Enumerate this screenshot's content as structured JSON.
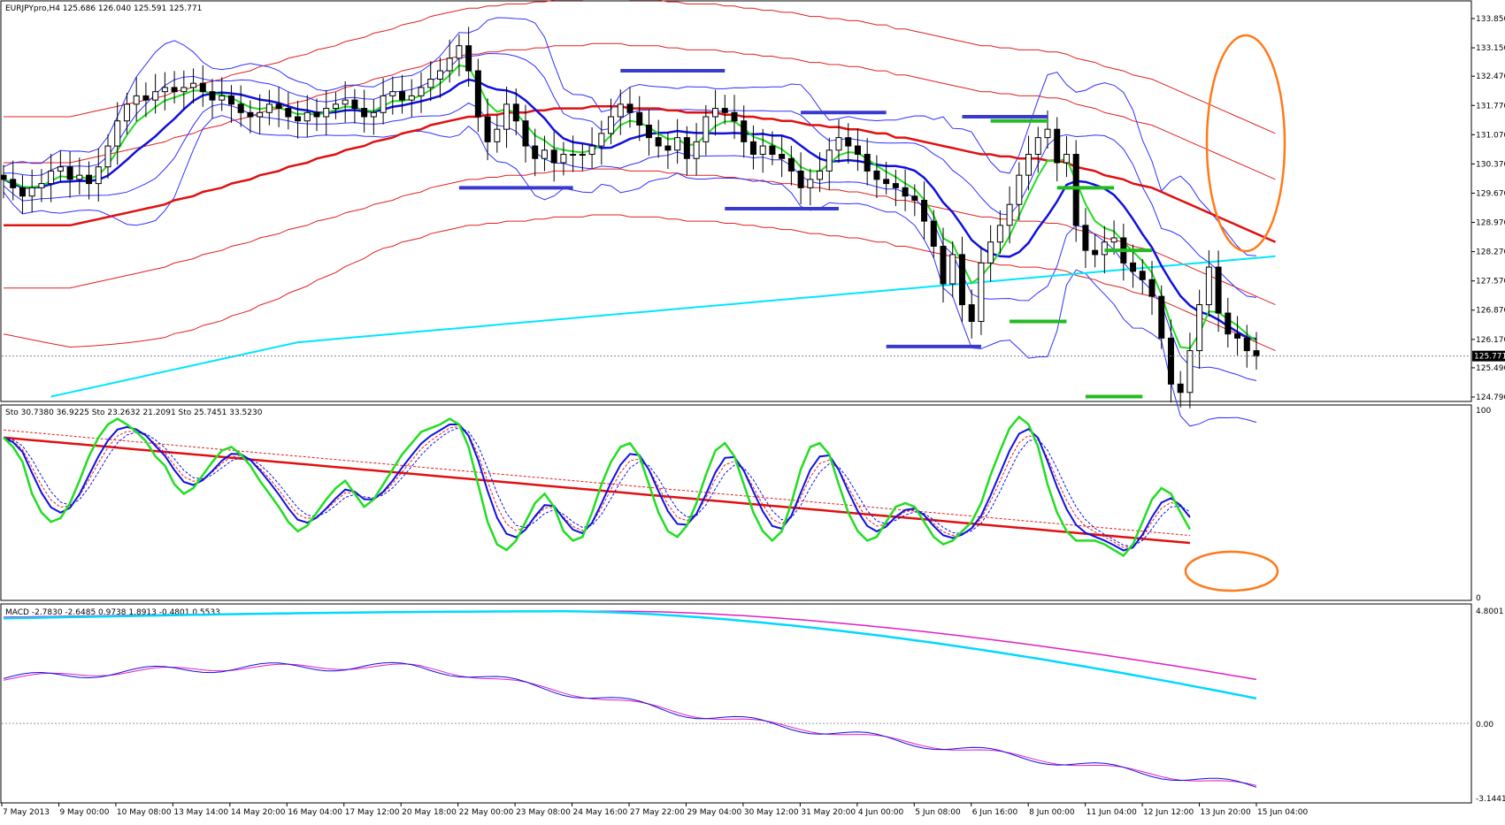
{
  "chart_data": [
    {
      "type": "candlestick",
      "header": "EURJPYpro,H4  125.686 126.040 125.591 125.771",
      "y_ticks": [
        "133.850",
        "133.150",
        "132.470",
        "131.770",
        "131.070",
        "130.370",
        "129.670",
        "128.970",
        "128.270",
        "127.570",
        "126.870",
        "126.170",
        "125.490",
        "124.790"
      ],
      "ylim": [
        124.79,
        133.85
      ],
      "current_price": "125.771",
      "x_ticks": [
        "7 May 2013",
        "9 May 00:00",
        "10 May 08:00",
        "13 May 14:00",
        "14 May 20:00",
        "16 May 04:00",
        "17 May 12:00",
        "20 May 18:00",
        "22 May 00:00",
        "23 May 08:00",
        "24 May 16:00",
        "27 May 22:00",
        "29 May 04:00",
        "30 May 12:00",
        "31 May 20:00",
        "4 Jun 00:00",
        "5 Jun 08:00",
        "6 Jun 16:00",
        "8 Jun 00:00",
        "11 Jun 04:00",
        "12 Jun 12:00",
        "13 Jun 20:00",
        "15 Jun 04:00"
      ],
      "closes": [
        130.0,
        129.8,
        129.6,
        129.8,
        129.9,
        130.2,
        130.3,
        130.0,
        130.1,
        129.9,
        130.3,
        130.8,
        131.4,
        131.8,
        132.0,
        131.9,
        132.1,
        132.2,
        132.1,
        132.2,
        132.3,
        132.1,
        131.9,
        132.0,
        131.8,
        131.6,
        131.5,
        131.6,
        131.8,
        131.7,
        131.5,
        131.4,
        131.6,
        131.5,
        131.7,
        131.8,
        131.9,
        131.7,
        131.5,
        131.6,
        132.0,
        132.1,
        131.9,
        132.0,
        132.2,
        132.4,
        132.6,
        132.9,
        133.2,
        132.6,
        131.5,
        130.9,
        131.2,
        131.8,
        131.4,
        130.8,
        130.5,
        130.7,
        130.4,
        130.6,
        130.6,
        130.6,
        130.8,
        131.1,
        131.5,
        131.8,
        131.6,
        131.3,
        131.0,
        130.8,
        130.7,
        131.0,
        130.5,
        130.9,
        131.5,
        131.7,
        131.6,
        131.4,
        130.9,
        130.6,
        130.8,
        130.6,
        130.5,
        130.2,
        129.8,
        130.0,
        130.2,
        130.7,
        131.0,
        130.8,
        130.6,
        130.2,
        130.0,
        129.9,
        129.8,
        129.6,
        129.5,
        129.0,
        128.4,
        127.5,
        128.2,
        127.0,
        126.6,
        128.0,
        128.5,
        128.9,
        129.4,
        130.1,
        130.6,
        131.0,
        131.2,
        130.4,
        130.6,
        128.9,
        128.3,
        128.2,
        128.5,
        128.6,
        128.0,
        127.8,
        127.6,
        127.2,
        126.2,
        125.1,
        124.9,
        125.9,
        127.0,
        127.9,
        126.8,
        126.3,
        126.2,
        125.9,
        125.771
      ],
      "ma_red_thick": [
        128.9,
        128.9,
        128.9,
        128.9,
        128.9,
        128.9,
        128.9,
        128.9,
        128.95,
        129.0,
        129.05,
        129.1,
        129.15,
        129.2,
        129.25,
        129.3,
        129.35,
        129.4,
        129.5,
        129.55,
        129.6,
        129.7,
        129.75,
        129.8,
        129.9,
        129.95,
        130.0,
        130.1,
        130.15,
        130.2,
        130.3,
        130.35,
        130.4,
        130.5,
        130.55,
        130.6,
        130.7,
        130.75,
        130.8,
        130.9,
        130.95,
        131.0,
        131.1,
        131.15,
        131.2,
        131.3,
        131.35,
        131.4,
        131.45,
        131.5,
        131.5,
        131.55,
        131.55,
        131.6,
        131.6,
        131.6,
        131.65,
        131.65,
        131.7,
        131.7,
        131.7,
        131.7,
        131.75,
        131.75,
        131.75,
        131.75,
        131.7,
        131.7,
        131.7,
        131.7,
        131.65,
        131.65,
        131.6,
        131.6,
        131.6,
        131.6,
        131.55,
        131.55,
        131.5,
        131.5,
        131.45,
        131.45,
        131.4,
        131.4,
        131.35,
        131.3,
        131.3,
        131.25,
        131.25,
        131.2,
        131.2,
        131.15,
        131.1,
        131.1,
        131.0,
        131.0,
        130.95,
        130.9,
        130.85,
        130.8,
        130.75,
        130.7,
        130.65,
        130.6,
        130.6,
        130.55,
        130.55,
        130.5,
        130.5,
        130.5,
        130.45,
        130.45,
        130.4,
        130.3,
        130.25,
        130.2,
        130.1,
        130.05,
        130.0,
        129.9,
        129.85,
        129.8,
        129.7,
        129.6,
        129.5,
        129.4,
        129.3,
        129.2,
        129.1,
        129.0,
        128.9,
        128.8,
        128.7,
        128.6,
        128.5
      ],
      "cyan_ma": [
        null,
        null,
        null,
        null,
        null,
        124.8,
        124.85,
        124.9,
        124.95,
        125.0,
        125.05,
        125.1,
        125.15,
        125.2,
        125.25,
        125.3,
        125.35,
        125.4,
        125.45,
        125.5,
        125.55,
        125.6,
        125.65,
        125.7,
        125.75,
        125.8,
        125.85,
        125.9,
        125.95,
        126.0,
        126.05,
        126.1,
        126.12,
        126.14,
        126.16,
        126.18,
        126.2,
        126.22,
        126.24,
        126.26,
        126.28,
        126.3,
        126.32,
        126.34,
        126.36,
        126.38,
        126.4,
        126.42,
        126.44,
        126.46,
        126.48,
        126.5,
        126.52,
        126.54,
        126.56,
        126.58,
        126.6,
        126.62,
        126.64,
        126.66,
        126.68,
        126.7,
        126.72,
        126.74,
        126.76,
        126.78,
        126.8,
        126.82,
        126.84,
        126.86,
        126.88,
        126.9,
        126.92,
        126.94,
        126.96,
        126.98,
        127.0,
        127.02,
        127.04,
        127.06,
        127.08,
        127.1,
        127.12,
        127.14,
        127.16,
        127.18,
        127.2,
        127.22,
        127.24,
        127.26,
        127.28,
        127.3,
        127.32,
        127.34,
        127.36,
        127.38,
        127.4,
        127.42,
        127.44,
        127.46,
        127.48,
        127.5,
        127.52,
        127.54,
        127.56,
        127.58,
        127.6,
        127.62,
        127.64,
        127.66,
        127.68,
        127.7,
        127.72,
        127.74,
        127.76,
        127.78,
        127.8,
        127.82,
        127.84,
        127.86,
        127.88,
        127.9,
        127.92,
        127.94,
        127.96,
        127.98,
        128.0,
        128.02,
        128.04,
        128.06,
        128.08,
        128.1,
        128.12,
        128.14,
        128.16
      ],
      "support_resistance_blue": [
        {
          "x0": 48,
          "x1": 60,
          "y": 129.8
        },
        {
          "x0": 65,
          "x1": 76,
          "y": 132.6
        },
        {
          "x0": 76,
          "x1": 88,
          "y": 129.3
        },
        {
          "x0": 84,
          "x1": 93,
          "y": 131.6
        },
        {
          "x0": 93,
          "x1": 103,
          "y": 126.0
        },
        {
          "x0": 101,
          "x1": 110,
          "y": 131.5
        }
      ],
      "support_resistance_green": [
        {
          "x0": 104,
          "x1": 110,
          "y": 131.4
        },
        {
          "x0": 111,
          "x1": 117,
          "y": 129.8
        },
        {
          "x0": 106,
          "x1": 112,
          "y": 126.6
        },
        {
          "x0": 116,
          "x1": 121,
          "y": 128.3
        },
        {
          "x0": 114,
          "x1": 120,
          "y": 124.8
        }
      ]
    },
    {
      "type": "line",
      "header": "Sto 30.7380 36.9225  Sto 23.2632 21.2091  Sto 25.7451 33.5230",
      "y_ticks": [
        "100",
        "0"
      ],
      "ylim": [
        0,
        100
      ],
      "green_k": [
        85,
        80,
        72,
        55,
        45,
        40,
        42,
        50,
        62,
        75,
        85,
        92,
        95,
        92,
        88,
        83,
        75,
        70,
        60,
        55,
        58,
        65,
        72,
        78,
        80,
        76,
        70,
        62,
        55,
        48,
        40,
        35,
        38,
        45,
        52,
        58,
        62,
        55,
        48,
        52,
        60,
        68,
        76,
        82,
        88,
        90,
        92,
        95,
        92,
        80,
        60,
        40,
        28,
        25,
        30,
        40,
        50,
        55,
        48,
        35,
        30,
        32,
        45,
        60,
        72,
        80,
        82,
        75,
        60,
        45,
        35,
        32,
        38,
        50,
        65,
        78,
        82,
        75,
        60,
        45,
        35,
        30,
        35,
        50,
        68,
        80,
        82,
        76,
        60,
        45,
        35,
        30,
        32,
        40,
        48,
        50,
        48,
        40,
        32,
        28,
        30,
        35,
        40,
        50,
        65,
        78,
        90,
        96,
        92,
        80,
        60,
        45,
        35,
        30,
        30,
        30,
        28,
        25,
        22,
        28,
        40,
        52,
        58,
        55,
        45,
        36
      ]
    },
    {
      "type": "line",
      "header": "MACD -2.7830 -2.6485 0.9738 1.8913 -0.4801 0.5533",
      "y_ticks": [
        "4.8001",
        "0.00",
        "-3.1441"
      ],
      "ylim": [
        -3.1441,
        4.8001
      ]
    }
  ]
}
